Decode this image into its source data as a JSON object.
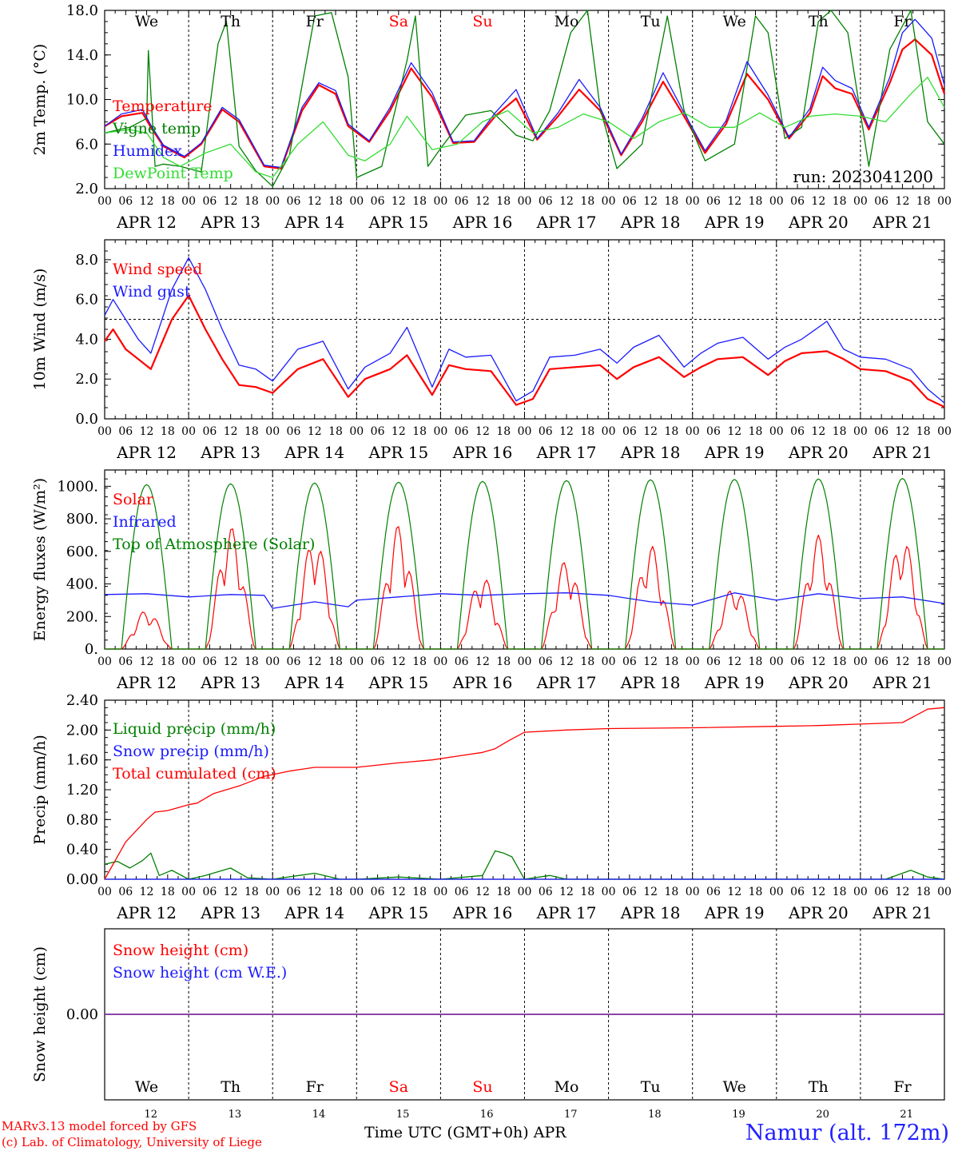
{
  "run_label": "run: 2023041200",
  "footer": {
    "model": "MARv3.13 model forced by GFS",
    "lab": "(c) Lab. of Climatology, University of Liege",
    "time_axis": "Time UTC (GMT+0h) APR",
    "station": "Namur (alt. 172m)"
  },
  "days": {
    "weekday_top": [
      "We",
      "Th",
      "Fr",
      "Sa",
      "Su",
      "Mo",
      "Tu",
      "We",
      "Th",
      "Fr"
    ],
    "weekend_flags": [
      false,
      false,
      false,
      true,
      true,
      false,
      false,
      false,
      false,
      false
    ],
    "dates": [
      "APR 12",
      "APR 13",
      "APR 14",
      "APR 15",
      "APR 16",
      "APR 17",
      "APR 18",
      "APR 19",
      "APR 20",
      "APR 21"
    ],
    "day_numbers": [
      "12",
      "13",
      "14",
      "15",
      "16",
      "17",
      "18",
      "19",
      "20",
      "21"
    ],
    "hour_ticks": [
      "00",
      "06",
      "12",
      "18"
    ],
    "final_hour": "00"
  },
  "colors": {
    "red": "#ff0000",
    "blue": "#1a1aff",
    "green": "#008000",
    "lightgreen": "#33dd33",
    "weekend": "#ff0000",
    "purple": "#7a2a9a"
  },
  "chart_data": [
    {
      "type": "line",
      "ylabel": "2m Temp. (°C)",
      "ylim": [
        2.0,
        18.0
      ],
      "yticks": [
        "2.0",
        "6.0",
        "10.0",
        "14.0",
        "18.0"
      ],
      "x_unit": "days since APR 12 00 UTC",
      "series": [
        {
          "name": "Temperature",
          "color": "red",
          "x": [
            0,
            0.2,
            0.45,
            0.55,
            0.7,
            0.95,
            1.15,
            1.4,
            1.6,
            1.9,
            2.1,
            2.35,
            2.55,
            2.75,
            2.9,
            3.15,
            3.4,
            3.65,
            3.9,
            4.15,
            4.4,
            4.65,
            4.9,
            5.15,
            5.4,
            5.65,
            5.9,
            6.15,
            6.4,
            6.65,
            6.9,
            7.15,
            7.4,
            7.65,
            7.9,
            8.15,
            8.4,
            8.55,
            8.7,
            8.9,
            9.1,
            9.35,
            9.5,
            9.65,
            9.85,
            10.0
          ],
          "values": [
            7.6,
            8.5,
            8.8,
            7.5,
            5.8,
            4.8,
            6.0,
            9.1,
            8.0,
            4.0,
            3.8,
            9.0,
            11.3,
            10.5,
            7.6,
            6.2,
            9.0,
            12.8,
            10.2,
            6.1,
            6.2,
            8.5,
            10.1,
            6.4,
            8.5,
            10.9,
            9.0,
            5.0,
            8.0,
            11.6,
            8.5,
            5.2,
            7.8,
            12.3,
            10.0,
            6.5,
            8.8,
            12.1,
            11.0,
            10.5,
            7.3,
            11.5,
            14.5,
            15.4,
            14.0,
            10.5
          ]
        },
        {
          "name": "Vigne temp",
          "color": "green",
          "x": [
            0,
            0.3,
            0.5,
            0.52,
            0.6,
            0.7,
            0.9,
            1.15,
            1.35,
            1.45,
            1.6,
            1.8,
            2.0,
            2.2,
            2.5,
            2.7,
            2.9,
            3.0,
            3.3,
            3.6,
            3.7,
            3.85,
            4.0,
            4.3,
            4.6,
            4.9,
            5.1,
            5.3,
            5.55,
            5.75,
            5.9,
            6.1,
            6.4,
            6.7,
            6.9,
            7.15,
            7.5,
            7.75,
            7.9,
            8.1,
            8.3,
            8.5,
            8.65,
            8.85,
            9.1,
            9.35,
            9.6,
            9.8,
            10.0
          ],
          "values": [
            7.0,
            7.5,
            8.3,
            14.4,
            4.0,
            4.2,
            4.0,
            3.5,
            15.0,
            17.0,
            5.8,
            3.6,
            2.2,
            5.0,
            17.5,
            17.8,
            12.0,
            3.0,
            4.0,
            13.5,
            17.5,
            4.0,
            5.6,
            8.6,
            9.0,
            6.8,
            6.3,
            9.0,
            16.0,
            18.0,
            9.2,
            3.8,
            6.0,
            17.5,
            9.0,
            4.5,
            6.0,
            17.5,
            16.0,
            6.5,
            7.5,
            17.0,
            18.0,
            16.0,
            4.0,
            14.5,
            18.0,
            8.0,
            6.0
          ]
        },
        {
          "name": "Humidex",
          "color": "blue",
          "x": [
            0,
            0.2,
            0.45,
            0.55,
            0.7,
            0.95,
            1.15,
            1.4,
            1.6,
            1.9,
            2.1,
            2.35,
            2.55,
            2.75,
            2.9,
            3.15,
            3.4,
            3.65,
            3.9,
            4.15,
            4.4,
            4.65,
            4.9,
            5.15,
            5.4,
            5.65,
            5.9,
            6.15,
            6.4,
            6.65,
            6.9,
            7.15,
            7.4,
            7.65,
            7.9,
            8.15,
            8.4,
            8.55,
            8.7,
            8.9,
            9.1,
            9.35,
            9.5,
            9.65,
            9.85,
            10.0
          ],
          "values": [
            7.6,
            8.7,
            9.1,
            7.7,
            5.9,
            4.9,
            6.1,
            9.3,
            8.2,
            4.1,
            3.9,
            9.3,
            11.5,
            10.8,
            7.8,
            6.3,
            9.3,
            13.3,
            10.6,
            6.2,
            6.3,
            8.8,
            10.9,
            6.5,
            8.8,
            11.8,
            9.3,
            5.1,
            8.3,
            12.4,
            8.8,
            5.4,
            8.1,
            13.4,
            10.4,
            6.6,
            9.2,
            12.9,
            11.7,
            11.0,
            7.5,
            12.0,
            16.0,
            17.2,
            15.5,
            11.3
          ]
        },
        {
          "name": "DewPoint Temp",
          "color": "lightgreen",
          "x": [
            0,
            0.3,
            0.5,
            0.7,
            0.9,
            1.2,
            1.5,
            1.8,
            2.0,
            2.3,
            2.6,
            2.9,
            3.1,
            3.4,
            3.6,
            3.9,
            4.2,
            4.5,
            4.8,
            5.1,
            5.4,
            5.7,
            6.0,
            6.3,
            6.6,
            6.9,
            7.2,
            7.5,
            7.8,
            8.1,
            8.4,
            8.7,
            9.0,
            9.3,
            9.6,
            9.8,
            10.0
          ],
          "values": [
            7.0,
            7.3,
            7.0,
            4.8,
            4.0,
            5.2,
            6.0,
            3.5,
            3.0,
            6.0,
            8.0,
            5.0,
            4.5,
            6.0,
            8.5,
            5.5,
            6.0,
            8.0,
            9.0,
            7.0,
            7.5,
            8.7,
            8.0,
            6.5,
            8.0,
            8.8,
            7.5,
            7.5,
            8.8,
            7.5,
            8.5,
            8.7,
            8.5,
            8.0,
            10.5,
            12.0,
            9.3
          ]
        }
      ]
    },
    {
      "type": "line",
      "ylabel": "10m Wind (m/s)",
      "ylim": [
        0.0,
        9.0
      ],
      "yticks": [
        "0.0",
        "2.0",
        "4.0",
        "6.0",
        "8.0"
      ],
      "reference_line": 5.0,
      "x_unit": "days since APR 12 00 UTC",
      "series": [
        {
          "name": "Wind speed",
          "color": "red",
          "x": [
            0,
            0.1,
            0.25,
            0.4,
            0.55,
            0.8,
            1.0,
            1.2,
            1.4,
            1.6,
            1.8,
            2.0,
            2.3,
            2.6,
            2.9,
            3.1,
            3.4,
            3.6,
            3.9,
            4.1,
            4.3,
            4.6,
            4.9,
            5.1,
            5.3,
            5.6,
            5.9,
            6.1,
            6.3,
            6.6,
            6.9,
            7.1,
            7.3,
            7.6,
            7.9,
            8.1,
            8.3,
            8.6,
            8.8,
            9.0,
            9.3,
            9.6,
            9.8,
            10.0
          ],
          "values": [
            3.9,
            4.5,
            3.5,
            3.0,
            2.5,
            5.0,
            6.2,
            4.5,
            3.0,
            1.7,
            1.6,
            1.3,
            2.5,
            3.0,
            1.1,
            2.0,
            2.5,
            3.2,
            1.2,
            2.7,
            2.5,
            2.4,
            0.7,
            1.0,
            2.5,
            2.6,
            2.7,
            2.0,
            2.6,
            3.1,
            2.1,
            2.6,
            3.0,
            3.1,
            2.2,
            2.9,
            3.3,
            3.4,
            3.0,
            2.5,
            2.4,
            1.9,
            1.0,
            0.6
          ]
        },
        {
          "name": "Wind gust",
          "color": "blue",
          "x": [
            0,
            0.1,
            0.25,
            0.4,
            0.55,
            0.8,
            1.0,
            1.2,
            1.4,
            1.6,
            1.8,
            2.0,
            2.3,
            2.6,
            2.9,
            3.1,
            3.4,
            3.6,
            3.9,
            4.1,
            4.3,
            4.6,
            4.9,
            5.1,
            5.3,
            5.6,
            5.9,
            6.1,
            6.3,
            6.6,
            6.9,
            7.1,
            7.3,
            7.6,
            7.9,
            8.1,
            8.3,
            8.6,
            8.8,
            9.0,
            9.3,
            9.6,
            9.8,
            10.0
          ],
          "values": [
            5.2,
            6.0,
            5.0,
            4.0,
            3.3,
            6.5,
            8.1,
            6.5,
            4.5,
            2.7,
            2.5,
            1.9,
            3.5,
            3.9,
            1.5,
            2.6,
            3.3,
            4.6,
            1.6,
            3.5,
            3.1,
            3.2,
            0.9,
            1.4,
            3.1,
            3.2,
            3.5,
            2.8,
            3.6,
            4.2,
            2.6,
            3.3,
            3.8,
            4.1,
            3.0,
            3.6,
            4.0,
            4.9,
            3.5,
            3.1,
            3.0,
            2.5,
            1.5,
            0.8
          ]
        }
      ]
    },
    {
      "type": "line",
      "ylabel": "Energy fluxes (W/m²)",
      "ylim": [
        0,
        1100
      ],
      "yticks": [
        "0.",
        "200.",
        "400.",
        "600.",
        "800.",
        "1000."
      ],
      "x_unit": "days since APR 12 00 UTC",
      "series": [
        {
          "name": "Solar",
          "color": "red",
          "daily_peaks": [
            240,
            750,
            690,
            760,
            450,
            550,
            640,
            390,
            700,
            690
          ]
        },
        {
          "name": "Infrared",
          "color": "blue",
          "x": [
            0,
            0.5,
            1.0,
            1.5,
            1.9,
            2.0,
            2.5,
            2.9,
            3.0,
            3.5,
            4.0,
            4.5,
            5.0,
            5.5,
            6.0,
            6.5,
            7.0,
            7.5,
            8.0,
            8.5,
            9.0,
            9.5,
            10.0
          ],
          "values": [
            335,
            340,
            320,
            335,
            330,
            250,
            290,
            260,
            300,
            320,
            340,
            330,
            340,
            345,
            330,
            290,
            270,
            345,
            300,
            340,
            310,
            320,
            280
          ]
        },
        {
          "name": "Top of Atmosphere (Solar)",
          "color": "green",
          "daily_peaks": [
            1010,
            1015,
            1020,
            1025,
            1030,
            1035,
            1040,
            1042,
            1045,
            1048
          ]
        }
      ]
    },
    {
      "type": "line",
      "ylabel": "Precip (mm/h)",
      "ylim": [
        0.0,
        2.4
      ],
      "yticks": [
        "0.00",
        "0.40",
        "0.80",
        "1.20",
        "1.60",
        "2.00",
        "2.40"
      ],
      "x_unit": "days since APR 12 00 UTC",
      "series": [
        {
          "name": "Liquid precip (mm/h)",
          "color": "green",
          "x": [
            0,
            0.15,
            0.3,
            0.45,
            0.55,
            0.65,
            0.8,
            1.0,
            1.2,
            1.5,
            1.7,
            2.0,
            2.5,
            2.8,
            3.0,
            3.5,
            4.0,
            4.5,
            4.65,
            4.75,
            4.85,
            4.95,
            5.0,
            5.3,
            5.5,
            6.0,
            7.0,
            8.0,
            9.0,
            9.3,
            9.6,
            9.8,
            10.0
          ],
          "values": [
            0.2,
            0.24,
            0.15,
            0.25,
            0.35,
            0.05,
            0.12,
            0.0,
            0.05,
            0.15,
            0.02,
            0.0,
            0.08,
            0.0,
            0.0,
            0.03,
            0.0,
            0.05,
            0.38,
            0.35,
            0.3,
            0.1,
            0.0,
            0.05,
            0.0,
            0.0,
            0.0,
            0.0,
            0.0,
            0.0,
            0.12,
            0.03,
            0.0
          ]
        },
        {
          "name": "Snow precip (mm/h)",
          "color": "blue",
          "x": [
            0,
            10.0
          ],
          "values": [
            0,
            0
          ]
        },
        {
          "name": "Total cumulated (cm)",
          "color": "red",
          "x": [
            0,
            0.25,
            0.5,
            0.6,
            0.75,
            1.0,
            1.1,
            1.3,
            1.6,
            1.9,
            2.2,
            2.5,
            3.0,
            3.5,
            3.9,
            4.2,
            4.5,
            4.65,
            4.8,
            5.0,
            5.5,
            6.0,
            7.0,
            8.0,
            8.5,
            9.0,
            9.5,
            9.8,
            10.0
          ],
          "values": [
            0.0,
            0.5,
            0.8,
            0.9,
            0.92,
            1.0,
            1.02,
            1.15,
            1.25,
            1.38,
            1.45,
            1.5,
            1.5,
            1.56,
            1.6,
            1.65,
            1.7,
            1.75,
            1.85,
            1.97,
            2.0,
            2.02,
            2.03,
            2.05,
            2.06,
            2.08,
            2.1,
            2.28,
            2.3
          ]
        }
      ]
    },
    {
      "type": "line",
      "ylabel": "Snow height (cm)",
      "yticks": [
        "0.00"
      ],
      "x_unit": "days since APR 12 00 UTC",
      "series": [
        {
          "name": "Snow height (cm)",
          "color": "red",
          "x": [
            0,
            10.0
          ],
          "values": [
            0,
            0
          ]
        },
        {
          "name": "Snow height (cm W.E.)",
          "color": "blue",
          "x": [
            0,
            10.0
          ],
          "values": [
            0,
            0
          ]
        }
      ]
    }
  ]
}
